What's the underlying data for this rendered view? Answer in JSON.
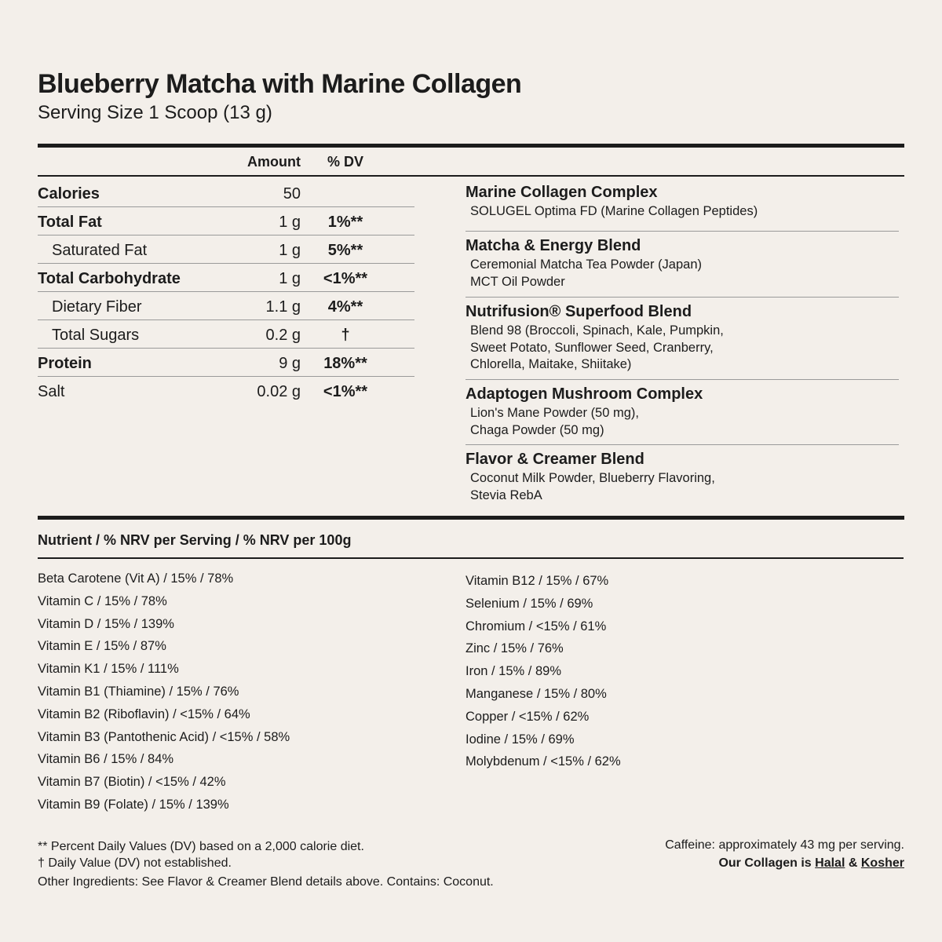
{
  "title": "Blueberry Matcha with Marine Collagen",
  "serving": "Serving Size 1 Scoop (13 g)",
  "table": {
    "amount_header": "Amount",
    "dv_header": "% DV",
    "rows": [
      {
        "name": "Calories",
        "amount": "50",
        "dv": ""
      },
      {
        "name": "Total Fat",
        "amount": "1 g",
        "dv": "1%**"
      },
      {
        "name": "Saturated Fat",
        "amount": "1 g",
        "dv": "5%**"
      },
      {
        "name": "Total Carbohydrate",
        "amount": "1 g",
        "dv": "<1%**"
      },
      {
        "name": "Dietary Fiber",
        "amount": "1.1 g",
        "dv": "4%**"
      },
      {
        "name": "Total Sugars",
        "amount": "0.2 g",
        "dv": "†"
      },
      {
        "name": "Protein",
        "amount": "9 g",
        "dv": "18%**"
      },
      {
        "name": "Salt",
        "amount": "0.02 g",
        "dv": "<1%**"
      }
    ]
  },
  "blends": [
    {
      "title": "Marine Collagen Complex",
      "lines": [
        "SOLUGEL Optima FD (Marine Collagen Peptides)"
      ]
    },
    {
      "title": "Matcha & Energy Blend",
      "lines": [
        "Ceremonial Matcha Tea Powder (Japan)",
        "MCT Oil Powder"
      ]
    },
    {
      "title": "Nutrifusion® Superfood Blend",
      "lines": [
        "Blend 98 (Broccoli, Spinach, Kale, Pumpkin,",
        "Sweet Potato, Sunflower Seed, Cranberry,",
        "Chlorella, Maitake, Shiitake)"
      ]
    },
    {
      "title": "Adaptogen Mushroom Complex",
      "lines": [
        "Lion's Mane Powder (50 mg),",
        "Chaga Powder (50 mg)"
      ]
    },
    {
      "title": "Flavor & Creamer Blend",
      "lines": [
        "Coconut Milk Powder, Blueberry Flavoring,",
        "Stevia RebA"
      ]
    }
  ],
  "nrv": {
    "header": "Nutrient / % NRV per Serving / % NRV per 100g",
    "left": [
      "Beta Carotene (Vit A) / 15% / 78%",
      "Vitamin C / 15% / 78%",
      "Vitamin D / 15% / 139%",
      "Vitamin E / 15% / 87%",
      "Vitamin K1 / 15% / 111%",
      "Vitamin B1 (Thiamine) / 15% / 76%",
      "Vitamin B2 (Riboflavin) / <15% / 64%",
      "Vitamin B3 (Pantothenic Acid) / <15% / 58%",
      "Vitamin B6 / 15% / 84%",
      "Vitamin B7 (Biotin) / <15% / 42%",
      "Vitamin B9 (Folate) / 15% / 139%"
    ],
    "right": [
      "Vitamin B12 / 15% / 67%",
      "Selenium / 15% / 69%",
      "Chromium / <15% / 61%",
      "Zinc / 15% / 76%",
      "Iron / 15% / 89%",
      "Manganese / 15% / 80%",
      "Copper / <15% / 62%",
      "Iodine / 15% / 69%",
      "Molybdenum / <15% / 62%"
    ]
  },
  "footer": {
    "dv_note": "** Percent Daily Values (DV) based on a 2,000 calorie diet.",
    "dagger_note": "† Daily Value (DV) not established.",
    "other": "Other Ingredients: See Flavor & Creamer Blend details above. Contains: Coconut.",
    "caffeine": "Caffeine: approximately 43 mg per serving.",
    "collagen_prefix": "Our Collagen is",
    "halal": "Halal",
    "amp": "&",
    "kosher": "Kosher"
  }
}
